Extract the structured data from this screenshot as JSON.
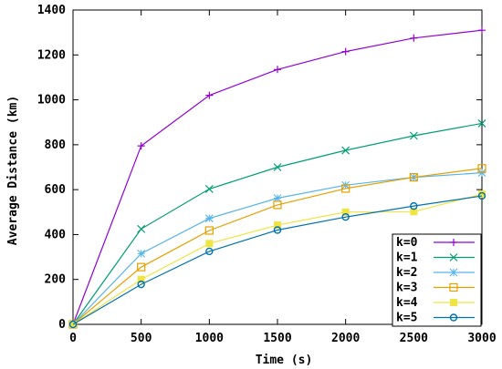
{
  "chart_data": {
    "type": "line",
    "xlabel": "Time (s)",
    "ylabel": "Average Distance (km)",
    "xlim": [
      0,
      3000
    ],
    "ylim": [
      0,
      1400
    ],
    "xticks": [
      0,
      500,
      1000,
      1500,
      2000,
      2500,
      3000
    ],
    "yticks": [
      0,
      200,
      400,
      600,
      800,
      1000,
      1200,
      1400
    ],
    "grid": false,
    "legend_position": "bottom-right",
    "x": [
      0,
      500,
      1000,
      1500,
      2000,
      2500,
      3000
    ],
    "series": [
      {
        "name": "k=0",
        "color": "#9400d3",
        "marker": "plus",
        "values": [
          0,
          795,
          1020,
          1135,
          1215,
          1275,
          1310
        ]
      },
      {
        "name": "k=1",
        "color": "#009e73",
        "marker": "cross",
        "values": [
          0,
          425,
          603,
          700,
          775,
          840,
          895
        ]
      },
      {
        "name": "k=2",
        "color": "#56b4e9",
        "marker": "star",
        "values": [
          0,
          315,
          472,
          562,
          620,
          655,
          675
        ]
      },
      {
        "name": "k=3",
        "color": "#e69f00",
        "marker": "square",
        "values": [
          0,
          255,
          418,
          532,
          605,
          655,
          695
        ]
      },
      {
        "name": "k=4",
        "color": "#f0e442",
        "marker": "fsquare",
        "values": [
          0,
          200,
          360,
          442,
          500,
          502,
          580
        ]
      },
      {
        "name": "k=5",
        "color": "#0072b2",
        "marker": "ocircle",
        "values": [
          0,
          178,
          325,
          420,
          478,
          527,
          572
        ]
      }
    ]
  }
}
